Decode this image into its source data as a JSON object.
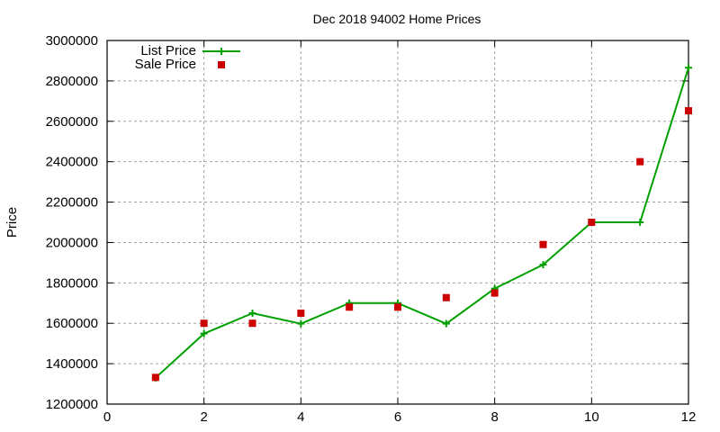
{
  "chart_data": {
    "type": "line",
    "title": "Dec 2018 94002 Home Prices",
    "xlabel": "",
    "ylabel": "Price",
    "xlim": [
      0,
      12
    ],
    "ylim": [
      1200000,
      3000000
    ],
    "x_ticks": [
      0,
      2,
      4,
      6,
      8,
      10,
      12
    ],
    "y_ticks": [
      1200000,
      1400000,
      1600000,
      1800000,
      2000000,
      2200000,
      2400000,
      2600000,
      2800000,
      3000000
    ],
    "grid": true,
    "legend_position": "top-left",
    "x": [
      1,
      2,
      3,
      4,
      5,
      6,
      7,
      8,
      9,
      10,
      11,
      12
    ],
    "series": [
      {
        "name": "List Price",
        "style": "line+plus-markers",
        "color": "#00a000",
        "values": [
          1330000,
          1549000,
          1650000,
          1598000,
          1700000,
          1700000,
          1598000,
          1772000,
          1890000,
          2100000,
          2100000,
          2865000
        ]
      },
      {
        "name": "Sale Price",
        "style": "square-markers",
        "color": "#cc0000",
        "values": [
          1332000,
          1600000,
          1600000,
          1650000,
          1680000,
          1680000,
          1727000,
          1750000,
          1990000,
          2100000,
          2400000,
          2652000
        ]
      }
    ]
  },
  "labels": {
    "title": "Dec 2018 94002 Home Prices",
    "ylabel": "Price",
    "legend": [
      "List Price",
      "Sale Price"
    ]
  }
}
